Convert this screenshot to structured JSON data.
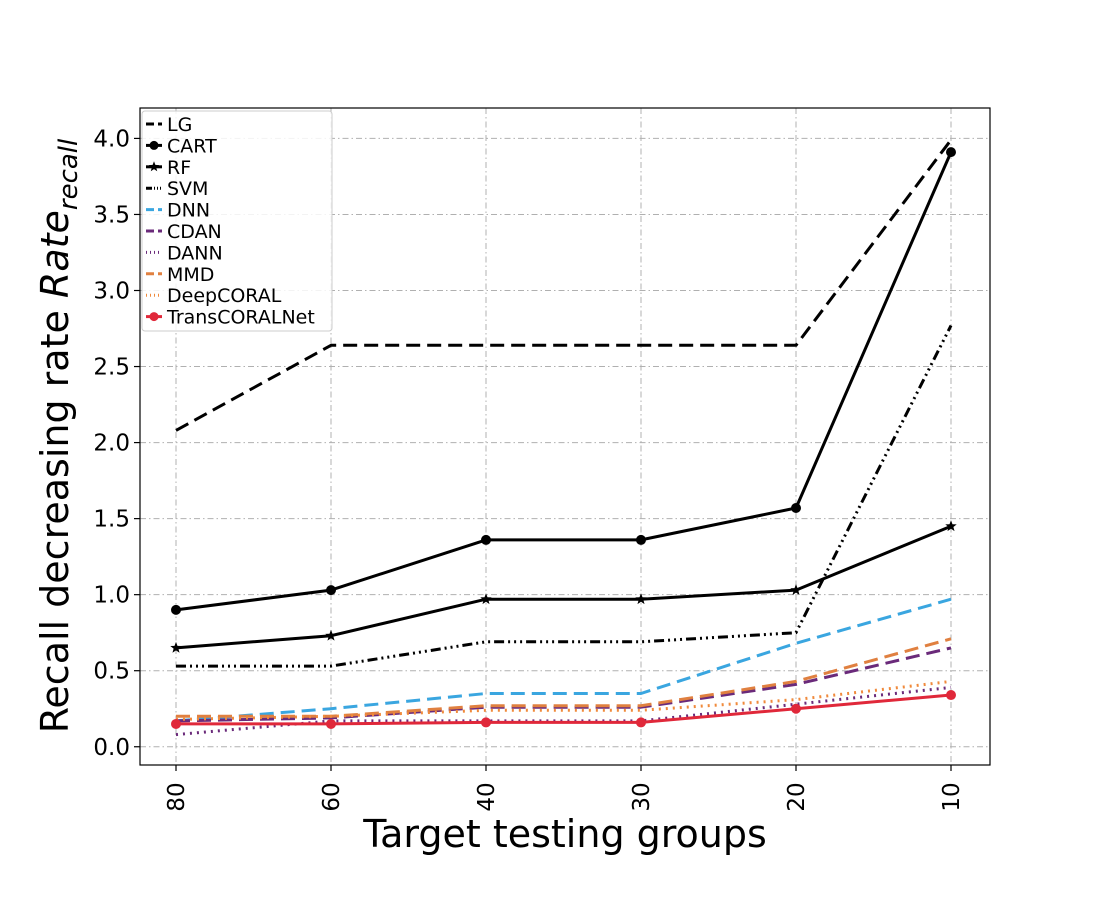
{
  "chart_data": {
    "type": "line",
    "title": "",
    "xlabel": "Target testing groups",
    "ylabel_main": "Recall decreasing rate ",
    "ylabel_italic": "Rate",
    "ylabel_sub": "recall",
    "categories": [
      "80",
      "60",
      "40",
      "30",
      "20",
      "10"
    ],
    "ylim": [
      -0.12,
      4.2
    ],
    "yticks": [
      "0.0",
      "0.5",
      "1.0",
      "1.5",
      "2.0",
      "2.5",
      "3.0",
      "3.5",
      "4.0"
    ],
    "grid": true,
    "legend_position": "top-left",
    "series": [
      {
        "name": "LG",
        "color": "#000000",
        "dash": "14 7",
        "marker": "none",
        "values": [
          2.08,
          2.64,
          2.64,
          2.64,
          2.64,
          3.99
        ]
      },
      {
        "name": "CART",
        "color": "#000000",
        "dash": "",
        "marker": "circle",
        "values": [
          0.9,
          1.03,
          1.36,
          1.36,
          1.57,
          3.91
        ]
      },
      {
        "name": "RF",
        "color": "#000000",
        "dash": "",
        "marker": "star",
        "values": [
          0.65,
          0.73,
          0.97,
          0.97,
          1.03,
          1.45
        ]
      },
      {
        "name": "SVM",
        "color": "#000000",
        "dash": "10 4 2 4 2 4 2 4",
        "marker": "none",
        "values": [
          0.53,
          0.53,
          0.69,
          0.69,
          0.75,
          2.77
        ]
      },
      {
        "name": "DNN",
        "color": "#3aa6e0",
        "dash": "14 7",
        "marker": "none",
        "values": [
          0.17,
          0.25,
          0.35,
          0.35,
          0.68,
          0.97
        ]
      },
      {
        "name": "CDAN",
        "color": "#6a2a7a",
        "dash": "14 7",
        "marker": "none",
        "values": [
          0.17,
          0.19,
          0.26,
          0.26,
          0.41,
          0.65
        ]
      },
      {
        "name": "DANN",
        "color": "#6a2a7a",
        "dash": "2 5",
        "marker": "none",
        "values": [
          0.08,
          0.17,
          0.17,
          0.17,
          0.28,
          0.39
        ]
      },
      {
        "name": "MMD",
        "color": "#e08040",
        "dash": "14 7",
        "marker": "none",
        "values": [
          0.2,
          0.2,
          0.27,
          0.27,
          0.43,
          0.71
        ]
      },
      {
        "name": "DeepCORAL",
        "color": "#f08a3c",
        "dash": "2 5",
        "marker": "none",
        "values": [
          0.18,
          0.2,
          0.24,
          0.24,
          0.31,
          0.43
        ]
      },
      {
        "name": "TransCORALNet",
        "color": "#e0283a",
        "dash": "",
        "marker": "circle",
        "values": [
          0.15,
          0.15,
          0.16,
          0.16,
          0.25,
          0.34
        ]
      }
    ]
  }
}
